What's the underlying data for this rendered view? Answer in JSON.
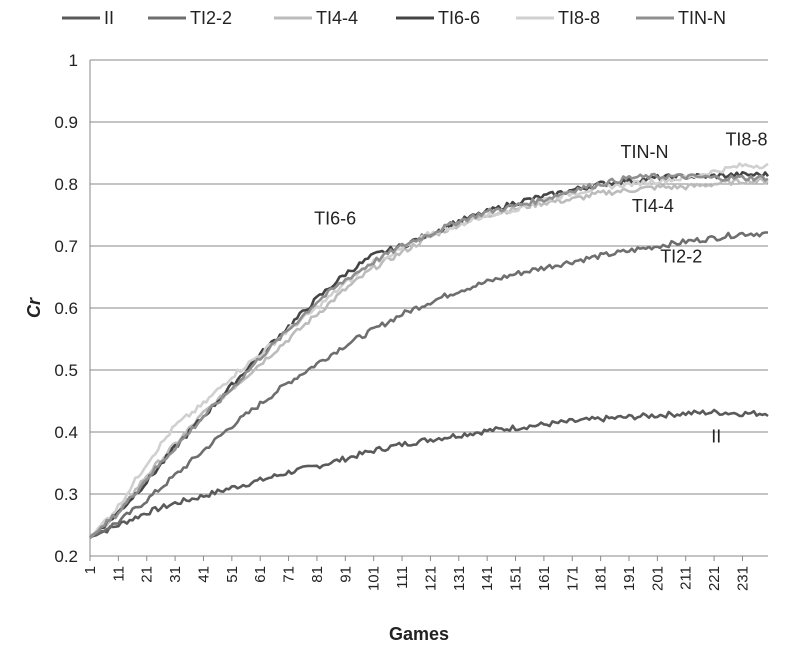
{
  "chart_data": {
    "type": "line",
    "title": "",
    "xlabel": "Games",
    "ylabel": "Cr",
    "ylim": [
      0.2,
      1.0
    ],
    "yticks": [
      "0.2",
      "0.3",
      "0.4",
      "0.5",
      "0.6",
      "0.7",
      "0.8",
      "0.9",
      "1"
    ],
    "xlim": [
      1,
      240
    ],
    "xticks": [
      "1",
      "11",
      "21",
      "31",
      "41",
      "51",
      "61",
      "71",
      "81",
      "91",
      "101",
      "111",
      "121",
      "131",
      "141",
      "151",
      "161",
      "171",
      "181",
      "191",
      "201",
      "211",
      "221",
      "231"
    ],
    "grid": "horizontal",
    "legend": "top",
    "x": [
      1,
      11,
      21,
      31,
      41,
      51,
      61,
      71,
      81,
      91,
      101,
      111,
      121,
      131,
      141,
      151,
      161,
      171,
      181,
      191,
      201,
      211,
      221,
      231,
      240
    ],
    "series": [
      {
        "name": "II",
        "color": "#5a5a5a",
        "values": [
          0.23,
          0.25,
          0.27,
          0.285,
          0.297,
          0.31,
          0.322,
          0.335,
          0.345,
          0.357,
          0.37,
          0.38,
          0.388,
          0.395,
          0.402,
          0.407,
          0.412,
          0.417,
          0.421,
          0.424,
          0.427,
          0.43,
          0.432,
          0.43,
          0.43
        ]
      },
      {
        "name": "TI2-2",
        "color": "#6e6e6e",
        "values": [
          0.23,
          0.255,
          0.29,
          0.33,
          0.37,
          0.41,
          0.445,
          0.48,
          0.51,
          0.54,
          0.565,
          0.59,
          0.61,
          0.628,
          0.642,
          0.655,
          0.665,
          0.675,
          0.684,
          0.692,
          0.7,
          0.707,
          0.713,
          0.72,
          0.72
        ]
      },
      {
        "name": "TI4-4",
        "color": "#bcbcbc",
        "values": [
          0.23,
          0.27,
          0.33,
          0.38,
          0.43,
          0.47,
          0.51,
          0.55,
          0.59,
          0.63,
          0.665,
          0.69,
          0.715,
          0.735,
          0.75,
          0.76,
          0.77,
          0.775,
          0.785,
          0.79,
          0.795,
          0.795,
          0.8,
          0.805,
          0.805
        ]
      },
      {
        "name": "TI6-6",
        "color": "#444444",
        "values": [
          0.23,
          0.27,
          0.32,
          0.375,
          0.425,
          0.475,
          0.525,
          0.57,
          0.615,
          0.655,
          0.685,
          0.7,
          0.72,
          0.74,
          0.755,
          0.77,
          0.78,
          0.79,
          0.8,
          0.805,
          0.81,
          0.812,
          0.813,
          0.815,
          0.815
        ]
      },
      {
        "name": "TI8-8",
        "color": "#d0d0d0",
        "values": [
          0.23,
          0.28,
          0.35,
          0.41,
          0.445,
          0.49,
          0.525,
          0.565,
          0.6,
          0.64,
          0.675,
          0.695,
          0.72,
          0.735,
          0.75,
          0.76,
          0.775,
          0.785,
          0.795,
          0.8,
          0.805,
          0.81,
          0.82,
          0.83,
          0.83
        ]
      },
      {
        "name": "TIN-N",
        "color": "#8f8f8f",
        "values": [
          0.23,
          0.27,
          0.325,
          0.375,
          0.425,
          0.47,
          0.52,
          0.565,
          0.61,
          0.645,
          0.675,
          0.7,
          0.72,
          0.74,
          0.755,
          0.765,
          0.775,
          0.79,
          0.8,
          0.81,
          0.812,
          0.812,
          0.81,
          0.81,
          0.81
        ]
      }
    ],
    "annotations": [
      {
        "text": "TI6-6",
        "x": 80,
        "y": 0.735
      },
      {
        "text": "TIN-N",
        "x": 188,
        "y": 0.842
      },
      {
        "text": "TI8-8",
        "x": 225,
        "y": 0.862
      },
      {
        "text": "TI4-4",
        "x": 192,
        "y": 0.755
      },
      {
        "text": "TI2-2",
        "x": 202,
        "y": 0.673
      },
      {
        "text": "II",
        "x": 220,
        "y": 0.383
      }
    ]
  }
}
